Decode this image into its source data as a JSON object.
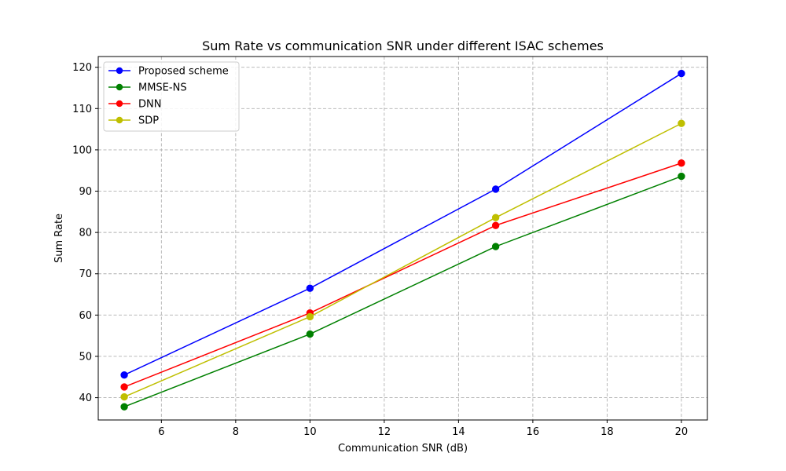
{
  "chart_data": {
    "type": "line",
    "title": "Sum Rate vs communication SNR under different ISAC schemes",
    "xlabel": "Communication SNR (dB)",
    "ylabel": "Sum Rate",
    "xlim": [
      4.3,
      20.7
    ],
    "ylim": [
      34.6,
      122.6
    ],
    "xticks": [
      6,
      8,
      10,
      12,
      14,
      16,
      18,
      20
    ],
    "yticks": [
      40,
      50,
      60,
      70,
      80,
      90,
      100,
      110,
      120
    ],
    "grid": true,
    "legend_position": "upper-left",
    "x": [
      5,
      10,
      15,
      20
    ],
    "series": [
      {
        "name": "Proposed scheme",
        "color": "#0000ff",
        "marker": "circle",
        "values": [
          45.5,
          66.5,
          90.5,
          118.5
        ]
      },
      {
        "name": "MMSE-NS",
        "color": "#008000",
        "marker": "circle",
        "values": [
          37.8,
          55.4,
          76.6,
          93.6
        ]
      },
      {
        "name": "DNN",
        "color": "#ff0000",
        "marker": "circle",
        "values": [
          42.6,
          60.5,
          81.7,
          96.8
        ]
      },
      {
        "name": "SDP",
        "color": "#bfbf00",
        "marker": "circle",
        "values": [
          40.2,
          59.6,
          83.6,
          106.4
        ]
      }
    ]
  }
}
